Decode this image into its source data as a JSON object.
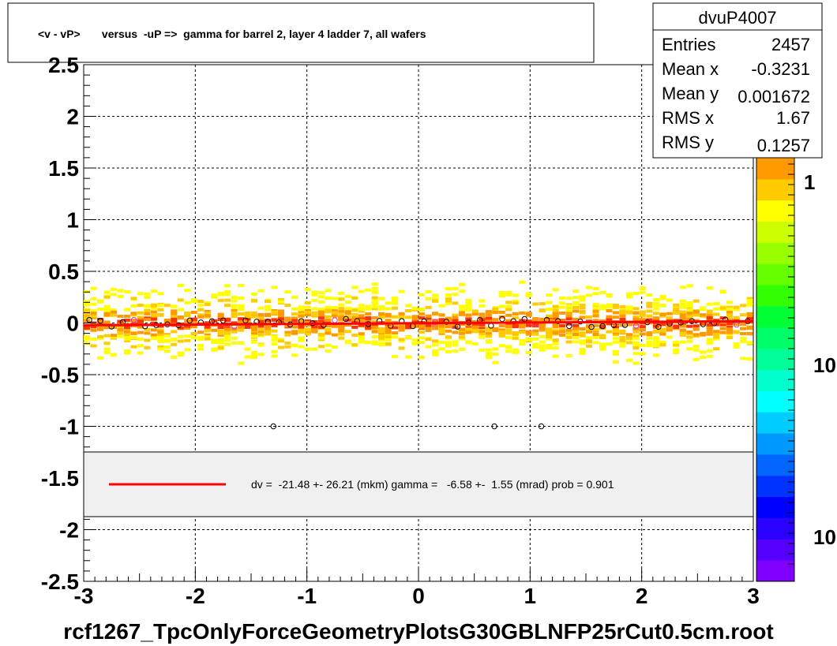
{
  "chart_data": {
    "type": "heatmap",
    "title": "<v - vP>       versus  -uP =>  gamma for barrel 2, layer 4 ladder 7, all wafers",
    "xlabel": "",
    "ylabel": "",
    "xlim": [
      -3,
      3
    ],
    "ylim": [
      -2.5,
      2.5
    ],
    "x_ticks": [
      "-3",
      "-2",
      "-1",
      "0",
      "1",
      "2",
      "3"
    ],
    "y_ticks": [
      "2.5",
      "2",
      "1.5",
      "1",
      "0.5",
      "0",
      "-0.5",
      "-1",
      "-1.5",
      "-2",
      "-2.5"
    ],
    "grid": true,
    "z_scale": "log",
    "z_tick_labels": [
      "1",
      "10",
      "10"
    ],
    "stats": {
      "name": "dvuP4007",
      "rows": [
        {
          "label": "Entries",
          "value": "2457"
        },
        {
          "label": "Mean x",
          "value": "-0.3231"
        },
        {
          "label": "Mean y",
          "value": "0.001672"
        },
        {
          "label": "RMS x",
          "value": "1.67"
        },
        {
          "label": "RMS y",
          "value": "0.1257"
        }
      ]
    },
    "fit": {
      "color": "#ff0000",
      "label": "dv =  -21.48 +- 26.21 (mkm) gamma =   -6.58 +-  1.55 (mrad) prob = 0.901",
      "dv_mkm": -21.48,
      "dv_err_mkm": 26.21,
      "gamma_mrad": -6.58,
      "gamma_err_mrad": 1.55,
      "prob": 0.901
    },
    "outlier_points": [
      {
        "x": -1.3,
        "y": -1.0
      },
      {
        "x": 0.68,
        "y": -1.0
      },
      {
        "x": 1.1,
        "y": -1.0
      }
    ],
    "band": {
      "y_center": 0.0,
      "y_half_width": 0.45
    }
  },
  "footer": {
    "filename": "rcf1267_TpcOnlyForceGeometryPlotsG30GBLNFP25rCut0.5cm.root"
  },
  "colors": {
    "palette": [
      "#7f00ff",
      "#5500ff",
      "#2a00ff",
      "#0000ff",
      "#0033ff",
      "#0066ff",
      "#0099ff",
      "#00ccff",
      "#00ffff",
      "#00ffcc",
      "#00ff99",
      "#00ff66",
      "#00ff33",
      "#33ff00",
      "#66ff00",
      "#99ff00",
      "#ccff00",
      "#ffff00",
      "#ffcc00",
      "#ff9900"
    ],
    "fit_line": "#ff0000",
    "legend_bg": "#f0f0f0"
  }
}
